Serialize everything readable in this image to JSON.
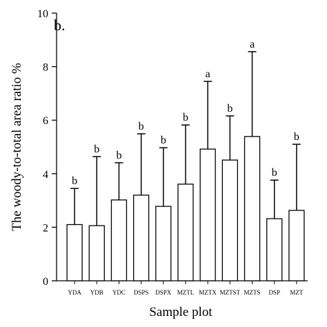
{
  "chart_data": {
    "type": "bar",
    "panel_label": "b.",
    "y_label": "The woody-to-total area ratio %",
    "x_label": "Sample plot",
    "categories": [
      "YDA",
      "YDB",
      "YDC",
      "DSPS",
      "DSPX",
      "MZTL",
      "MZTX",
      "MZTST",
      "MZTS",
      "DSP",
      "MZT"
    ],
    "values": [
      2.1,
      2.06,
      3.02,
      3.2,
      2.78,
      3.61,
      4.92,
      4.51,
      5.39,
      2.32,
      2.63
    ],
    "errors": [
      1.35,
      2.58,
      1.39,
      2.29,
      2.19,
      2.21,
      2.53,
      1.65,
      3.17,
      1.44,
      2.47
    ],
    "significance_letters": [
      "b",
      "b",
      "b",
      "b",
      "b",
      "b",
      "a",
      "b",
      "a",
      "b",
      "b"
    ],
    "color": "#ffffff",
    "ylim": [
      0,
      10
    ],
    "yticks": [
      0,
      2,
      4,
      6,
      8,
      10
    ],
    "grid": false
  }
}
